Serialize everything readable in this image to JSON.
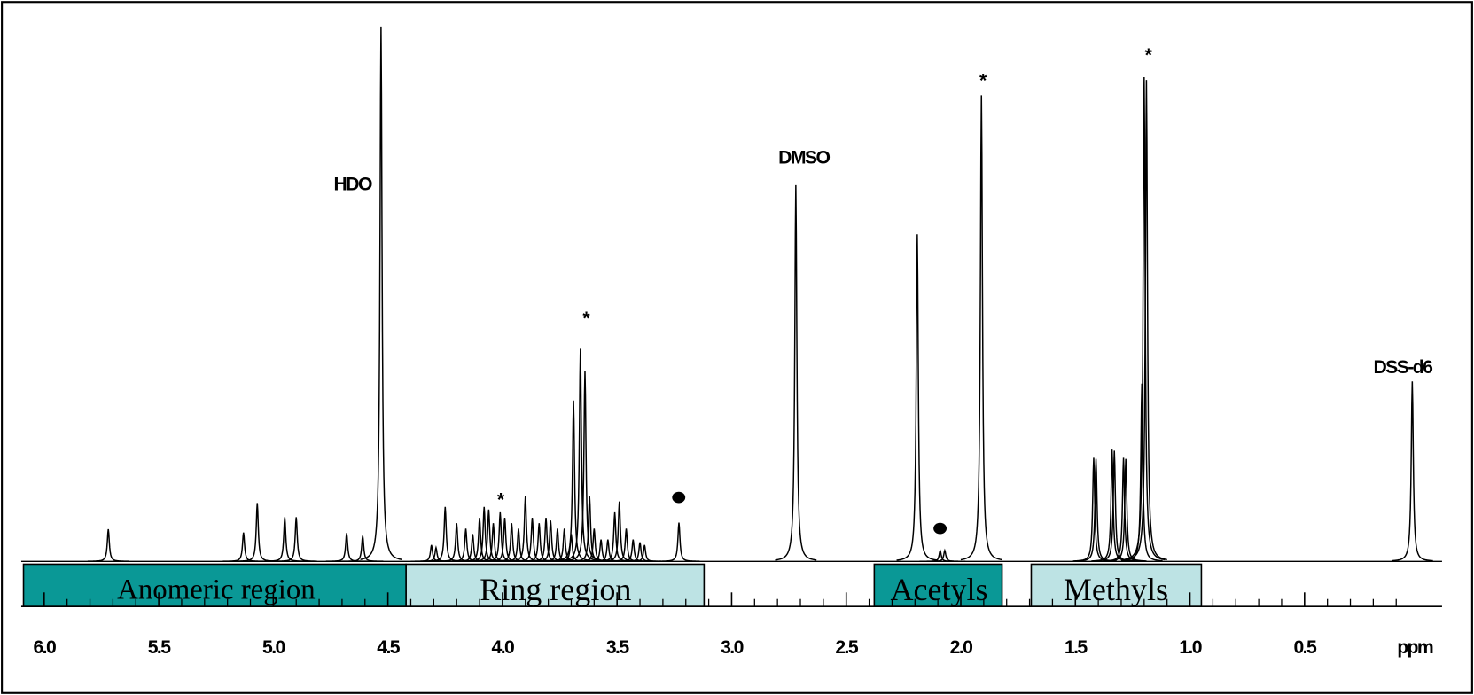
{
  "chart_data": {
    "type": "spectrum",
    "xlabel": "ppm",
    "xlim": [
      6.1,
      -0.1
    ],
    "ylim": [
      0,
      100
    ],
    "xticks": [
      {
        "value": 6,
        "label": "6.0"
      },
      5.5,
      {
        "value": 5,
        "label": "5.0"
      },
      4.5,
      {
        "value": 4,
        "label": "4.0"
      },
      3.5,
      {
        "value": 3,
        "label": "3.0"
      },
      2.5,
      {
        "value": 2,
        "label": "2.0"
      },
      1.5,
      {
        "value": 1,
        "label": "1.0"
      },
      0.5
    ],
    "minor_xticks": [
      5.9,
      5.8,
      5.7,
      5.6,
      5.4,
      5.3,
      5.2,
      5.1,
      4.9,
      4.8,
      4.7,
      4.6,
      4.4,
      4.3,
      4.2,
      4.1,
      3.9,
      3.8,
      3.7,
      3.6,
      3.4,
      3.3,
      3.2,
      3.1,
      2.9,
      2.8,
      2.7,
      2.6,
      2.4,
      2.3,
      2.2,
      2.1,
      1.9,
      1.8,
      1.7,
      1.6,
      1.4,
      1.3,
      1.2,
      1.1,
      0.9,
      0.8,
      0.7,
      0.6,
      0.4,
      0.3,
      0.2,
      0.1
    ],
    "color": "#000000",
    "series": [
      {
        "x": [
          5.72,
          5.13,
          5.07,
          4.95,
          4.9,
          4.68,
          4.61,
          4.53,
          4.31,
          4.29,
          4.25,
          4.2,
          4.16,
          4.13,
          4.1,
          4.08,
          4.06,
          4.04,
          4.01,
          3.99,
          3.96,
          3.93,
          3.9,
          3.87,
          3.84,
          3.81,
          3.79,
          3.76,
          3.73,
          3.7,
          3.69,
          3.66,
          3.64,
          3.62,
          3.6,
          3.57,
          3.54,
          3.51,
          3.49,
          3.46,
          3.43,
          3.4,
          3.38,
          3.23,
          2.72,
          2.19,
          2.09,
          2.07,
          1.91,
          1.42,
          1.41,
          1.34,
          1.33,
          1.29,
          1.28,
          1.21,
          1.2,
          1.19,
          0.03
        ],
        "values": [
          5.9,
          5.3,
          10.7,
          8.1,
          8.1,
          5.2,
          4.7,
          98.1,
          3,
          2.5,
          10,
          7,
          6,
          5,
          8,
          10,
          9.5,
          7,
          9,
          8,
          7,
          6,
          12,
          8,
          7,
          8,
          7.5,
          6,
          6,
          5,
          29.5,
          39,
          35,
          12,
          6,
          4,
          4,
          9,
          11,
          6,
          4,
          3.5,
          3,
          7.1,
          69,
          60,
          2,
          2,
          85.5,
          19,
          18.8,
          20.5,
          20.3,
          19,
          18.8,
          32.6,
          88.8,
          88.3,
          33
        ]
      }
    ],
    "annotations": [
      "HDO",
      "DMSO",
      "DSS-d6",
      "*",
      "*",
      "*",
      "*"
    ],
    "regions": [
      "Anomeric region",
      "Ring region",
      "Acetyls",
      "Methyls"
    ]
  }
}
